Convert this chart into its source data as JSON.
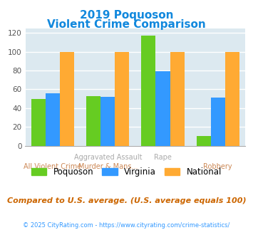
{
  "title_line1": "2019 Poquoson",
  "title_line2": "Violent Crime Comparison",
  "poquoson": [
    50,
    53,
    117,
    10
  ],
  "virginia": [
    56,
    52,
    79,
    51
  ],
  "national": [
    100,
    100,
    100,
    100
  ],
  "colors": {
    "poquoson": "#66cc22",
    "virginia": "#3399ff",
    "national": "#ffaa33"
  },
  "ylim": [
    0,
    125
  ],
  "yticks": [
    0,
    20,
    40,
    60,
    80,
    100,
    120
  ],
  "background_color": "#dce9f0",
  "title_color": "#1188dd",
  "top_label_color": "#aaaaaa",
  "bottom_label_color": "#cc8855",
  "footnote": "Compared to U.S. average. (U.S. average equals 100)",
  "copyright": "© 2025 CityRating.com - https://www.cityrating.com/crime-statistics/",
  "legend_labels": [
    "Poquoson",
    "Virginia",
    "National"
  ],
  "grid_color": "#ffffff",
  "top_labels": [
    "",
    "Aggravated Assault",
    "Rape",
    ""
  ],
  "bottom_labels": [
    "All Violent Crime",
    "Murder & Mans...",
    "",
    "Robbery"
  ]
}
